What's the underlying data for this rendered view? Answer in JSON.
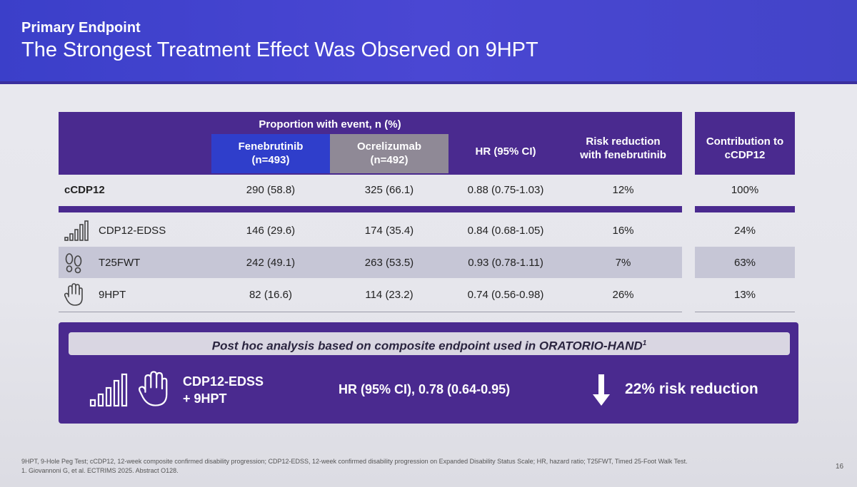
{
  "header": {
    "kicker": "Primary Endpoint",
    "title": "The Strongest Treatment Effect Was Observed on 9HPT"
  },
  "table": {
    "group_header": "Proportion with event, n (%)",
    "col_fene": [
      "Fenebrutinib",
      "(n=493)"
    ],
    "col_ocre": [
      "Ocrelizumab",
      "(n=492)"
    ],
    "col_hr": "HR (95% CI)",
    "col_risk": [
      "Risk reduction",
      "with fenebrutinib"
    ],
    "col_contrib": [
      "Contribution to",
      "cCDP12"
    ],
    "rows": [
      {
        "label": "cCDP12",
        "icon": "",
        "fene": "290 (58.8)",
        "ocre": "325 (66.1)",
        "hr": "0.88 (0.75-1.03)",
        "risk": "12%",
        "contrib": "100%"
      },
      {
        "label": "CDP12-EDSS",
        "icon": "bar-chart-icon",
        "fene": "146 (29.6)",
        "ocre": "174 (35.4)",
        "hr": "0.84 (0.68-1.05)",
        "risk": "16%",
        "contrib": "24%"
      },
      {
        "label": "T25FWT",
        "icon": "footprints-icon",
        "fene": "242 (49.1)",
        "ocre": "263 (53.5)",
        "hr": "0.93 (0.78-1.11)",
        "risk": "7%",
        "contrib": "63%"
      },
      {
        "label": "9HPT",
        "icon": "hand-icon",
        "fene": "82 (16.6)",
        "ocre": "114 (23.2)",
        "hr": "0.74 (0.56-0.98)",
        "risk": "26%",
        "contrib": "13%"
      }
    ]
  },
  "posthoc": {
    "banner": "Post hoc analysis based on composite endpoint used in ORATORIO-HAND",
    "banner_sup": "1",
    "endpoint": [
      "CDP12-EDSS",
      "+ 9HPT"
    ],
    "hr": "HR (95% CI), 0.78 (0.64-0.95)",
    "reduction": "22% risk reduction",
    "colors": {
      "box": "#4a2a8f",
      "banner": "#d9d6e2"
    }
  },
  "footnotes": [
    "9HPT, 9-Hole Peg Test; cCDP12, 12-week composite confirmed disability progression; CDP12-EDSS, 12-week confirmed disability progression on Expanded Disability Status Scale; HR, hazard ratio; T25FWT, Timed 25-Foot Walk Test.",
    "1. Giovannoni G, et al. ECTRIMS 2025. Abstract O128."
  ],
  "page_number": "16",
  "colors": {
    "header": "#4146cc",
    "table_band": "#4a2a8f",
    "fene": "#2f3ecb",
    "ocre": "#8f8996",
    "highlight_row": "#c6c6d6"
  }
}
